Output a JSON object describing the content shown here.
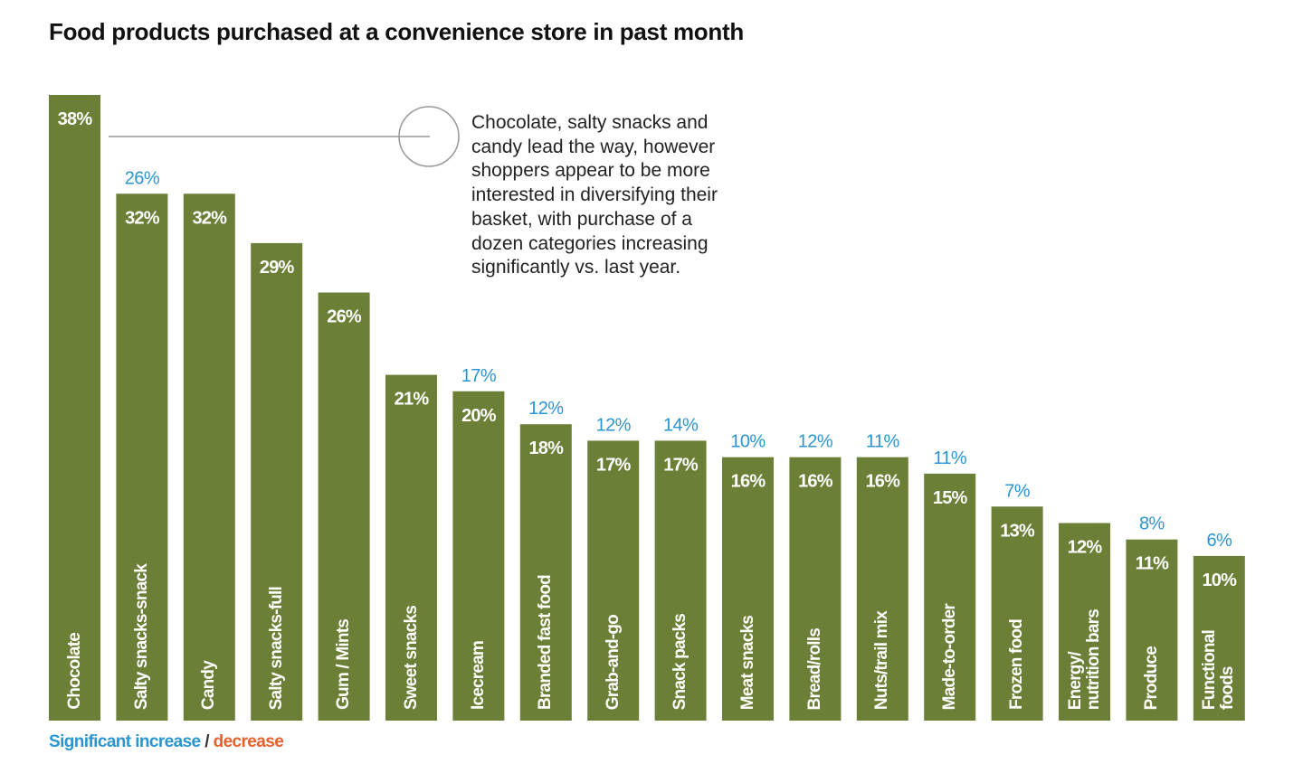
{
  "chart_data": {
    "type": "bar",
    "title": "Food products purchased at a convenience store in past month",
    "categories": [
      "Chocolate",
      "Salty snacks-snack",
      "Candy",
      "Salty snacks-full",
      "Gum / Mints",
      "Sweet snacks",
      "Icecream",
      "Branded fast food",
      "Grab-and-go",
      "Snack packs",
      "Meat snacks",
      "Bread/rolls",
      "Nuts/trail mix",
      "Made-to-order",
      "Frozen food",
      "Energy/\nnutrition bars",
      "Produce",
      "Functional\nfoods"
    ],
    "series": [
      {
        "color": "#6b8036",
        "values": [
          38,
          32,
          32,
          29,
          26,
          21,
          20,
          18,
          17,
          17,
          16,
          16,
          16,
          15,
          13,
          12,
          11,
          10
        ],
        "value_labels": [
          "38%",
          "32%",
          "32%",
          "29%",
          "26%",
          "21%",
          "20%",
          "18%",
          "17%",
          "17%",
          "16%",
          "16%",
          "16%",
          "15%",
          "13%",
          "12%",
          "11%",
          "10%"
        ]
      },
      {
        "name": "Significant increase",
        "color": "#2b95d0",
        "values": [
          null,
          26,
          null,
          null,
          null,
          null,
          17,
          12,
          12,
          14,
          10,
          12,
          11,
          11,
          7,
          null,
          8,
          6
        ],
        "value_labels": [
          null,
          "26%",
          null,
          null,
          null,
          null,
          "17%",
          "12%",
          "12%",
          "14%",
          "10%",
          "12%",
          "11%",
          "11%",
          "7%",
          null,
          "8%",
          "6%"
        ]
      }
    ],
    "legend_extra": {
      "separator": "/",
      "decrease": "decrease",
      "decrease_color": "#e8602c"
    },
    "annotation": "Chocolate, salty snacks and\ncandy lead the way, however\nshoppers appear to be more\ninterested in diversifying their\nbasket, with purchase of a\ndozen categories increasing\nsignificantly vs. last year."
  }
}
